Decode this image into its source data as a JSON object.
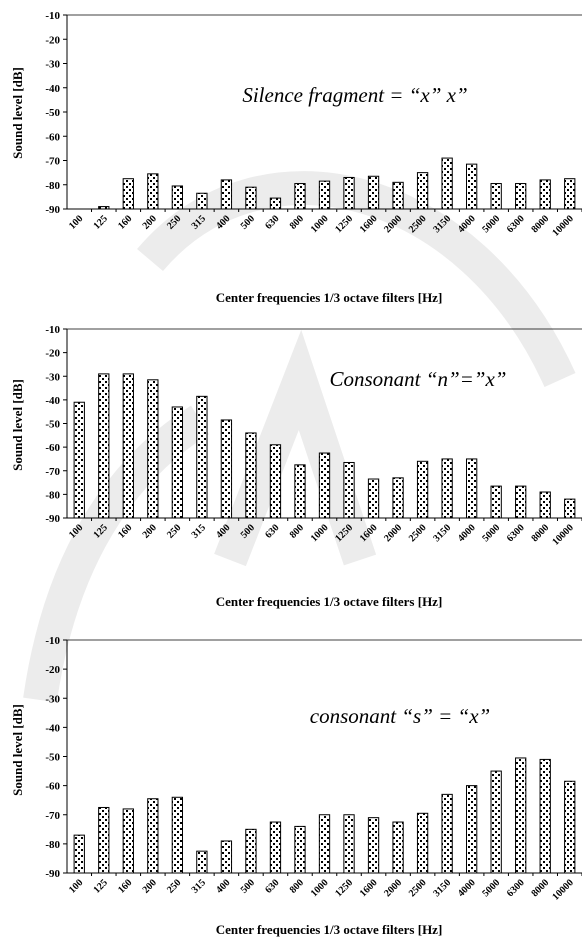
{
  "chart_data": [
    {
      "type": "bar",
      "title": "Silence fragment = “x” x”",
      "xlabel": "Center frequencies 1/3 octave filters [Hz]",
      "ylabel": "Sound level [dB]",
      "ylim": [
        -90,
        -10
      ],
      "yticks": [
        -10,
        -20,
        -30,
        -40,
        -50,
        -60,
        -70,
        -80,
        -90
      ],
      "categories": [
        "100",
        "125",
        "160",
        "200",
        "250",
        "315",
        "400",
        "500",
        "630",
        "800",
        "1000",
        "1250",
        "1600",
        "2000",
        "2500",
        "3150",
        "4000",
        "5000",
        "6300",
        "8000",
        "10000"
      ],
      "values": [
        -90,
        -89,
        -77.5,
        -75.5,
        -80.5,
        -83.5,
        -78,
        -81,
        -85.5,
        -79.5,
        -78.5,
        -77,
        -76.5,
        -79,
        -75,
        -69,
        -71.5,
        -79.5,
        -79.5,
        -78,
        -77.5
      ],
      "grid": "top line only",
      "legend": "none"
    },
    {
      "type": "bar",
      "title": "Consonant “n”=”x”",
      "xlabel": "Center frequencies 1/3 octave filters [Hz]",
      "ylabel": "Sound level [dB]",
      "ylim": [
        -90,
        -10
      ],
      "yticks": [
        -10,
        -20,
        -30,
        -40,
        -50,
        -60,
        -70,
        -80,
        -90
      ],
      "categories": [
        "100",
        "125",
        "160",
        "200",
        "250",
        "315",
        "400",
        "500",
        "630",
        "800",
        "1000",
        "1250",
        "1600",
        "2000",
        "2500",
        "3150",
        "4000",
        "5000",
        "6300",
        "8000",
        "10000"
      ],
      "values": [
        -41,
        -29,
        -29,
        -31.5,
        -43,
        -38.5,
        -48.5,
        -54,
        -59,
        -67.5,
        -62.5,
        -66.5,
        -73.5,
        -73,
        -66,
        -65,
        -65,
        -76.5,
        -76.5,
        -79,
        -82
      ],
      "grid": "top line only",
      "legend": "none"
    },
    {
      "type": "bar",
      "title": "consonant “s” = “x”",
      "xlabel": "Center frequencies 1/3 octave filters [Hz]",
      "ylabel": "Sound level [dB]",
      "ylim": [
        -90,
        -10
      ],
      "yticks": [
        -10,
        -20,
        -30,
        -40,
        -50,
        -60,
        -70,
        -80,
        -90
      ],
      "categories": [
        "100",
        "125",
        "160",
        "200",
        "250",
        "315",
        "400",
        "500",
        "630",
        "800",
        "1000",
        "1250",
        "1600",
        "2000",
        "2500",
        "3150",
        "4000",
        "5000",
        "6300",
        "8000",
        "10000"
      ],
      "values": [
        -77,
        -67.5,
        -68,
        -64.5,
        -64,
        -82.5,
        -79,
        -75,
        -72.5,
        -74,
        -70,
        -70,
        -71,
        -72.5,
        -69.5,
        -63,
        -60,
        -55,
        -50.5,
        -51,
        -58.5
      ],
      "grid": "top line only",
      "legend": "none"
    }
  ],
  "colors": {
    "bar_fill": "#ffffff",
    "bar_pattern": "#000000",
    "axis": "#000000",
    "watermark": "#ececec"
  }
}
